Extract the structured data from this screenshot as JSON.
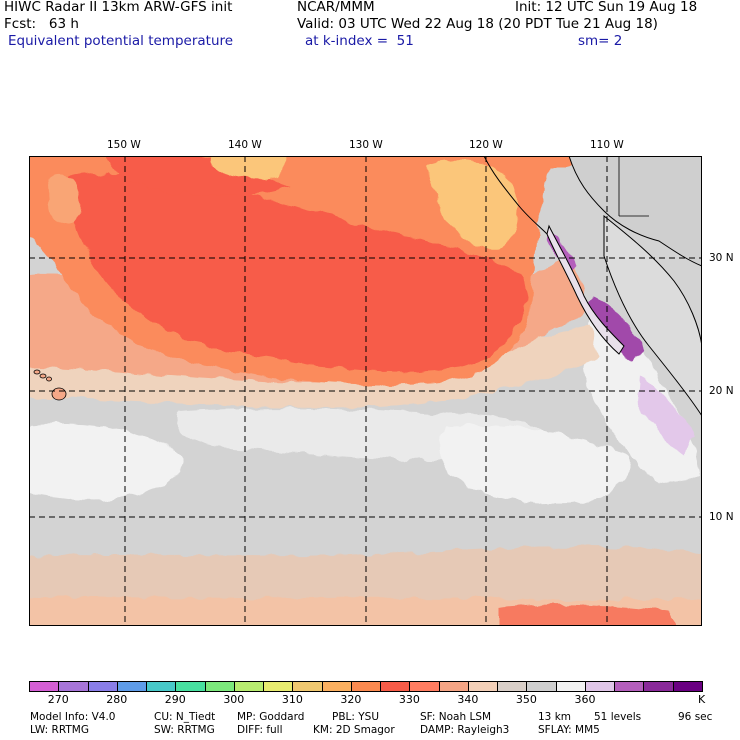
{
  "header": {
    "line1_left": "HIWC Radar II 13km ARW-GFS init",
    "line1_mid": "NCAR/MMM",
    "line1_right": "Init: 12 UTC Sun 19 Aug 18",
    "line2_left": "Fcst:   63 h",
    "line2_mid": "Valid: 03 UTC Wed 22 Aug 18 (20 PDT Tue 21 Aug 18)",
    "line3_left": "Equivalent potential temperature",
    "line3_mid": "at k-index =  51",
    "line3_right": "sm= 2"
  },
  "map": {
    "lon_labels": [
      "150 W",
      "140 W",
      "130 W",
      "120 W",
      "110 W"
    ],
    "lat_labels": [
      "30 N",
      "20 N",
      "10 N"
    ]
  },
  "colorbar": {
    "colors": [
      "#d45fd4",
      "#a775d8",
      "#8a7ee8",
      "#5f9ce8",
      "#48c8c8",
      "#48e0a0",
      "#7ce87c",
      "#b8ec70",
      "#e8ec70",
      "#f0c870",
      "#fbb060",
      "#fb8a50",
      "#f75c48",
      "#ff7d61",
      "#f5a585",
      "#f3d0b8",
      "#d9cfc8",
      "#cfcfcf",
      "#f2f2f2",
      "#e0c6e8",
      "#b45fbc",
      "#8a2a9a",
      "#6a0082"
    ],
    "labels": [
      "270",
      "280",
      "290",
      "300",
      "310",
      "320",
      "330",
      "340",
      "350",
      "360"
    ],
    "unit": "K"
  },
  "footer": {
    "line1": [
      "Model Info: V4.0",
      "CU: N_Tiedt",
      "MP: Goddard",
      "PBL: YSU",
      "SF: Noah LSM",
      "13 km",
      "51 levels",
      "96 sec"
    ],
    "line2": [
      "LW: RRTMG",
      "SW: RRTMG",
      "DIFF: full",
      "KM: 2D Smagor",
      "DAMP: Rayleigh3",
      "SFLAY: MM5"
    ]
  }
}
